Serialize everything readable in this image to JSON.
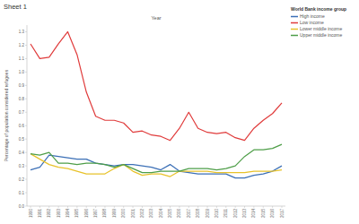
{
  "chart_data": {
    "type": "line",
    "title": "Sheet 1",
    "x_label": "Year",
    "y_label": "Percentage of population considered refugees",
    "legend_title": "World Bank income group",
    "legend": "top-right",
    "grid": false,
    "categories": [
      "1990",
      "1991",
      "1992",
      "1993",
      "1994",
      "1995",
      "1996",
      "1997",
      "1998",
      "1999",
      "2000",
      "2001",
      "2002",
      "2003",
      "2004",
      "2005",
      "2006",
      "2007",
      "2008",
      "2009",
      "2010",
      "2011",
      "2012",
      "2013",
      "2014",
      "2015",
      "2016",
      "2017"
    ],
    "ylim": [
      0,
      1.35
    ],
    "yticks": [
      {
        "value": 0,
        "label": "0.0"
      },
      0.1,
      0.2,
      0.3,
      0.4,
      0.5,
      0.6,
      0.7,
      0.8,
      0.9,
      {
        "value": 1,
        "label": "1.0"
      },
      1.1,
      1.2,
      1.3
    ],
    "series": [
      {
        "name": "High income",
        "color": "#3b6fb6",
        "values": [
          0.27,
          0.29,
          0.38,
          0.37,
          0.36,
          0.35,
          0.35,
          0.32,
          0.31,
          0.3,
          0.31,
          0.31,
          0.3,
          0.29,
          0.27,
          0.31,
          0.26,
          0.25,
          0.24,
          0.24,
          0.24,
          0.24,
          0.21,
          0.21,
          0.23,
          0.24,
          0.26,
          0.3
        ]
      },
      {
        "name": "Low income",
        "color": "#e03b3b",
        "values": [
          1.21,
          1.1,
          1.11,
          1.21,
          1.3,
          1.13,
          0.85,
          0.67,
          0.64,
          0.64,
          0.62,
          0.55,
          0.56,
          0.53,
          0.52,
          0.49,
          0.58,
          0.7,
          0.58,
          0.55,
          0.54,
          0.55,
          0.51,
          0.49,
          0.58,
          0.64,
          0.69,
          0.77
        ]
      },
      {
        "name": "Lower middle income",
        "color": "#e8c22a",
        "values": [
          0.39,
          0.35,
          0.31,
          0.29,
          0.28,
          0.26,
          0.24,
          0.24,
          0.24,
          0.28,
          0.31,
          0.26,
          0.23,
          0.24,
          0.24,
          0.22,
          0.26,
          0.26,
          0.26,
          0.26,
          0.25,
          0.25,
          0.25,
          0.25,
          0.26,
          0.26,
          0.26,
          0.27
        ]
      },
      {
        "name": "Upper middle income",
        "color": "#4e9e48",
        "values": [
          0.39,
          0.38,
          0.4,
          0.32,
          0.32,
          0.31,
          0.32,
          0.32,
          0.31,
          0.29,
          0.31,
          0.28,
          0.25,
          0.25,
          0.26,
          0.26,
          0.26,
          0.28,
          0.28,
          0.28,
          0.27,
          0.28,
          0.3,
          0.37,
          0.42,
          0.42,
          0.43,
          0.46
        ]
      }
    ]
  }
}
